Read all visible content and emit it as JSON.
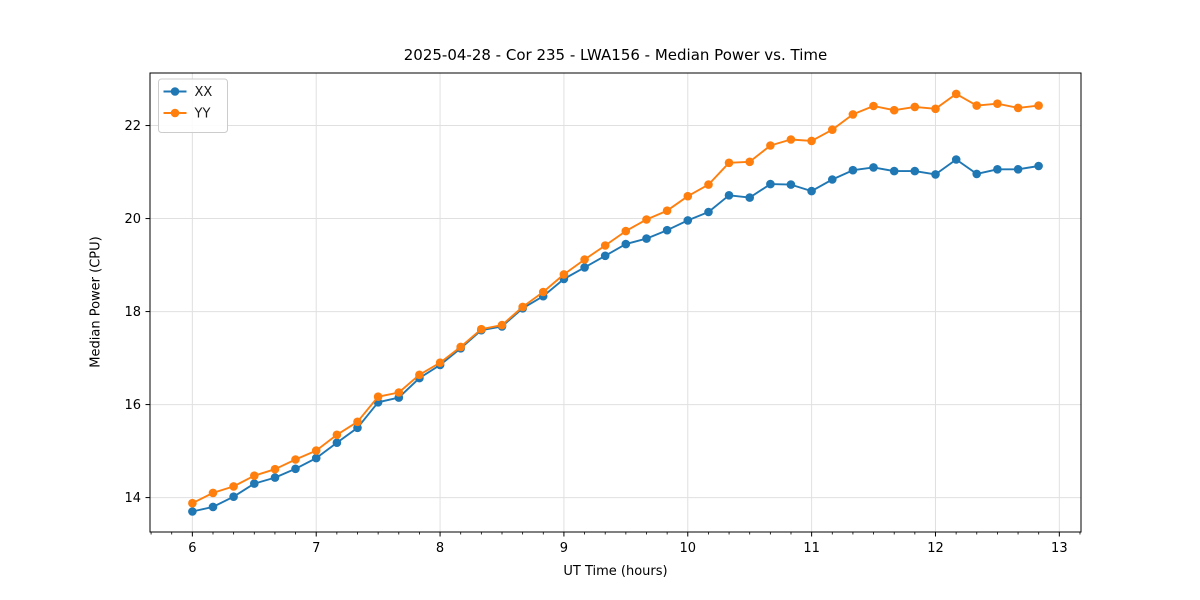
{
  "page": {
    "background": "#ffffff"
  },
  "chart_data": {
    "type": "line",
    "title": "2025-04-28 - Cor 235 - LWA156 - Median Power vs. Time",
    "xlabel": "UT Time (hours)",
    "ylabel": "Median Power (CPU)",
    "xlim": [
      5.658,
      13.175
    ],
    "ylim": [
      13.26,
      23.13
    ],
    "xticks": [
      6,
      7,
      8,
      9,
      10,
      11,
      12,
      13
    ],
    "yticks": [
      14,
      16,
      18,
      20,
      22
    ],
    "x_minor_step": 0.16667,
    "grid": true,
    "grid_color": "#e0e0e0",
    "spine_color": "#000000",
    "legend_position": "upper-left",
    "marker": "o",
    "x": [
      6,
      6.167,
      6.333,
      6.5,
      6.667,
      6.833,
      7,
      7.167,
      7.333,
      7.5,
      7.667,
      7.833,
      8,
      8.167,
      8.333,
      8.5,
      8.667,
      8.833,
      9,
      9.167,
      9.333,
      9.5,
      9.667,
      9.833,
      10,
      10.167,
      10.333,
      10.5,
      10.667,
      10.833,
      11,
      11.167,
      11.333,
      11.5,
      11.667,
      11.833,
      12,
      12.167,
      12.333,
      12.5,
      12.667,
      12.833
    ],
    "series": [
      {
        "name": "XX",
        "color": "#1f77b4",
        "values": [
          13.7,
          13.8,
          14.02,
          14.3,
          14.43,
          14.62,
          14.85,
          15.18,
          15.5,
          16.05,
          16.15,
          16.57,
          16.85,
          17.21,
          17.6,
          17.68,
          18.07,
          18.33,
          18.7,
          18.95,
          19.2,
          19.45,
          19.57,
          19.75,
          19.96,
          20.14,
          20.5,
          20.45,
          20.74,
          20.73,
          20.59,
          20.84,
          21.04,
          21.1,
          21.02,
          21.02,
          20.95,
          21.27,
          20.96,
          21.06,
          21.06,
          21.13
        ]
      },
      {
        "name": "YY",
        "color": "#ff7f0e",
        "values": [
          13.88,
          14.1,
          14.24,
          14.47,
          14.61,
          14.82,
          15.01,
          15.35,
          15.63,
          16.17,
          16.26,
          16.64,
          16.9,
          17.24,
          17.62,
          17.71,
          18.1,
          18.42,
          18.8,
          19.12,
          19.42,
          19.73,
          19.98,
          20.17,
          20.48,
          20.73,
          21.2,
          21.22,
          21.57,
          21.7,
          21.67,
          21.91,
          22.24,
          22.42,
          22.33,
          22.4,
          22.36,
          22.68,
          22.43,
          22.47,
          22.38,
          22.43
        ]
      }
    ]
  }
}
